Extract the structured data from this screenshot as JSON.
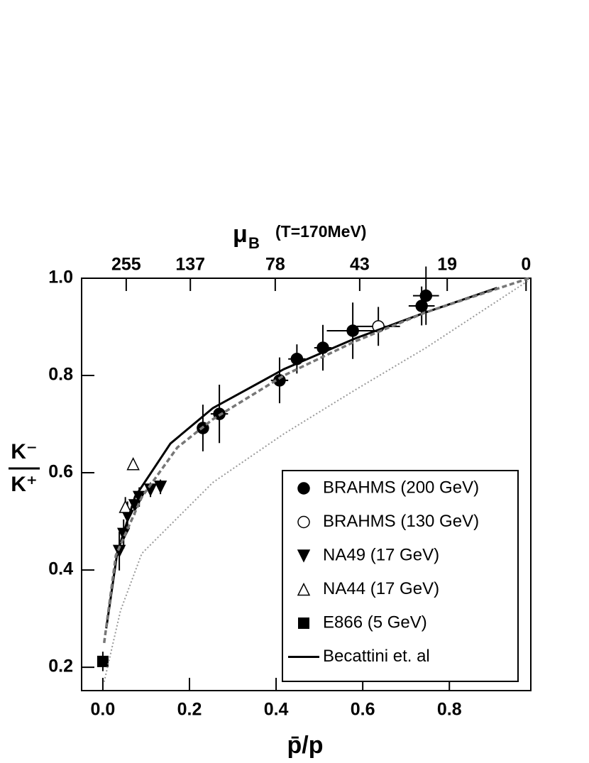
{
  "chart_data": {
    "type": "scatter",
    "xlabel": "p̄/p",
    "ylabel_top": "K⁻",
    "ylabel_bottom": "K⁺",
    "top_axis": {
      "symbol": "μ",
      "subscript": "B",
      "note": "(T=170MeV)",
      "ticks": [
        255,
        137,
        78,
        43,
        19,
        0
      ],
      "at": [
        0.054,
        0.202,
        0.398,
        0.593,
        0.795,
        0.977
      ]
    },
    "xlim": [
      -0.049,
      0.988
    ],
    "ylim": [
      0.152,
      1.0
    ],
    "xticks": [
      {
        "value": 0,
        "label": "0.0"
      },
      0.2,
      0.4,
      0.6,
      0.8
    ],
    "yticks": [
      0.2,
      0.4,
      0.6,
      0.8,
      {
        "value": 1,
        "label": "1.0"
      }
    ],
    "legend": "lower right",
    "series": [
      {
        "name": "BRAHMS (200 GeV)",
        "marker": "circle",
        "color": "#000000",
        "x": [
          0.231,
          0.269,
          0.408,
          0.448,
          0.508,
          0.577,
          0.736,
          0.746
        ],
        "values": [
          0.692,
          0.721,
          0.79,
          0.834,
          0.857,
          0.892,
          0.943,
          0.964
        ],
        "yerr": [
          0.048,
          0.06,
          0.047,
          0.03,
          0.047,
          0.058,
          0.04,
          0.06
        ],
        "xerr": [
          0.012,
          0.02,
          0.02,
          0.02,
          0.02,
          0.06,
          0.03,
          0.03
        ]
      },
      {
        "name": "BRAHMS (130 GeV)",
        "marker": "open-circle",
        "color": "#000000",
        "x": [
          0.636
        ],
        "values": [
          0.901
        ],
        "yerr": [
          0.04
        ],
        "xerr": [
          0.05
        ]
      },
      {
        "name": "NA49 (17 GeV)",
        "marker": "down-triangle",
        "color": "#000000",
        "x": [
          0.038,
          0.048,
          0.057,
          0.074,
          0.084,
          0.11,
          0.133
        ],
        "values": [
          0.439,
          0.474,
          0.511,
          0.533,
          0.55,
          0.565,
          0.571
        ],
        "yerr": [
          0.04,
          0.03,
          0.03,
          0.02,
          0.02,
          0.015,
          0.015
        ]
      },
      {
        "name": "NA44 (17 GeV)",
        "marker": "open-up-triangle",
        "color": "#000000",
        "x": [
          0.052,
          0.07
        ],
        "values": [
          0.53,
          0.618
        ],
        "yerr": [
          0.02,
          0.005
        ]
      },
      {
        "name": "E866 (5 GeV)",
        "marker": "square",
        "color": "#000000",
        "x": [
          0.0
        ],
        "values": [
          0.212
        ],
        "yerr": [
          0.02
        ]
      },
      {
        "name": "Becattini et. al",
        "line": "solid",
        "color": "#000000",
        "x": [
          0.008,
          0.033,
          0.074,
          0.156,
          0.254,
          0.418,
          0.582,
          0.746,
          0.91
        ],
        "values": [
          0.28,
          0.434,
          0.55,
          0.66,
          0.733,
          0.813,
          0.876,
          0.93,
          0.98
        ]
      },
      {
        "line": "dashed",
        "color": "#777777",
        "x": [
          0.003,
          0.03,
          0.09,
          0.172,
          0.254,
          0.418,
          0.582,
          0.746,
          0.984
        ],
        "values": [
          0.25,
          0.43,
          0.55,
          0.652,
          0.71,
          0.8,
          0.87,
          0.93,
          1.0
        ]
      },
      {
        "line": "dotted",
        "color": "#999999",
        "x": [
          0.003,
          0.041,
          0.09,
          0.254,
          0.418,
          0.582,
          0.746,
          0.984
        ],
        "values": [
          0.17,
          0.317,
          0.434,
          0.58,
          0.68,
          0.77,
          0.857,
          0.996
        ]
      }
    ]
  }
}
